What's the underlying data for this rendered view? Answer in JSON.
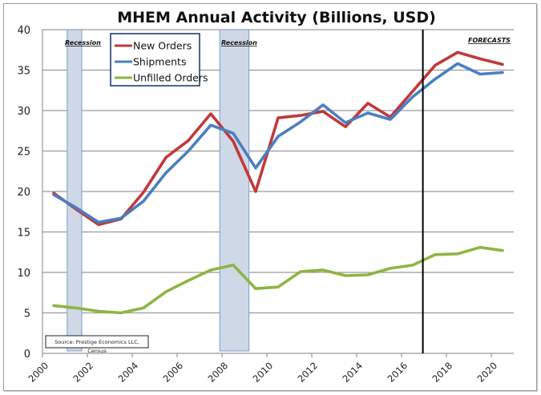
{
  "chart_data": {
    "type": "line",
    "title": "MHEM Annual Activity (Billions, USD)",
    "xlabel": "",
    "ylabel": "",
    "ylim": [
      0,
      40
    ],
    "yticks": [
      0,
      5,
      10,
      15,
      20,
      25,
      30,
      35,
      40
    ],
    "x": [
      2000,
      2001,
      2002,
      2003,
      2004,
      2005,
      2006,
      2007,
      2008,
      2009,
      2010,
      2011,
      2012,
      2013,
      2014,
      2015,
      2016,
      2017,
      2018,
      2019,
      2020
    ],
    "xtick_labels": [
      "2000",
      "2002",
      "2004",
      "2006",
      "2008",
      "2010",
      "2012",
      "2014",
      "2016",
      "2018",
      "2020"
    ],
    "grid": "horizontal",
    "legend_position": "top-left",
    "series": [
      {
        "name": "New Orders",
        "color": "#c0393b",
        "values": [
          19.8,
          17.8,
          15.9,
          16.6,
          19.9,
          24.2,
          26.3,
          29.6,
          26.2,
          20.0,
          29.1,
          29.4,
          29.9,
          28.0,
          30.9,
          29.2,
          32.4,
          35.6,
          37.2,
          36.4,
          35.7
        ]
      },
      {
        "name": "Shipments",
        "color": "#4a7fc1",
        "values": [
          19.6,
          18.0,
          16.2,
          16.7,
          18.8,
          22.3,
          25.0,
          28.2,
          27.2,
          22.9,
          26.8,
          28.6,
          30.7,
          28.5,
          29.7,
          28.9,
          31.7,
          33.9,
          35.8,
          34.5,
          34.7
        ]
      },
      {
        "name": "Unfilled Orders",
        "color": "#8db543",
        "values": [
          5.9,
          5.6,
          5.2,
          5.0,
          5.6,
          7.6,
          9.0,
          10.3,
          10.9,
          8.0,
          8.2,
          10.1,
          10.3,
          9.6,
          9.7,
          10.5,
          10.9,
          12.2,
          12.3,
          13.1,
          12.7
        ]
      }
    ],
    "shaded_regions": [
      {
        "label": "Recession",
        "start": 2000.6,
        "end": 2001.25
      },
      {
        "label": "Recession",
        "start": 2007.4,
        "end": 2008.7
      }
    ],
    "vertical_markers": [
      {
        "label": "FORECASTS",
        "x": 2016.45,
        "color": "#000000"
      }
    ],
    "annotations": {
      "recession_label": "Recession",
      "forecasts_label": "FORECASTS",
      "source_line1": "Source: Prestige Economics LLC,",
      "source_line2": "Census"
    }
  }
}
